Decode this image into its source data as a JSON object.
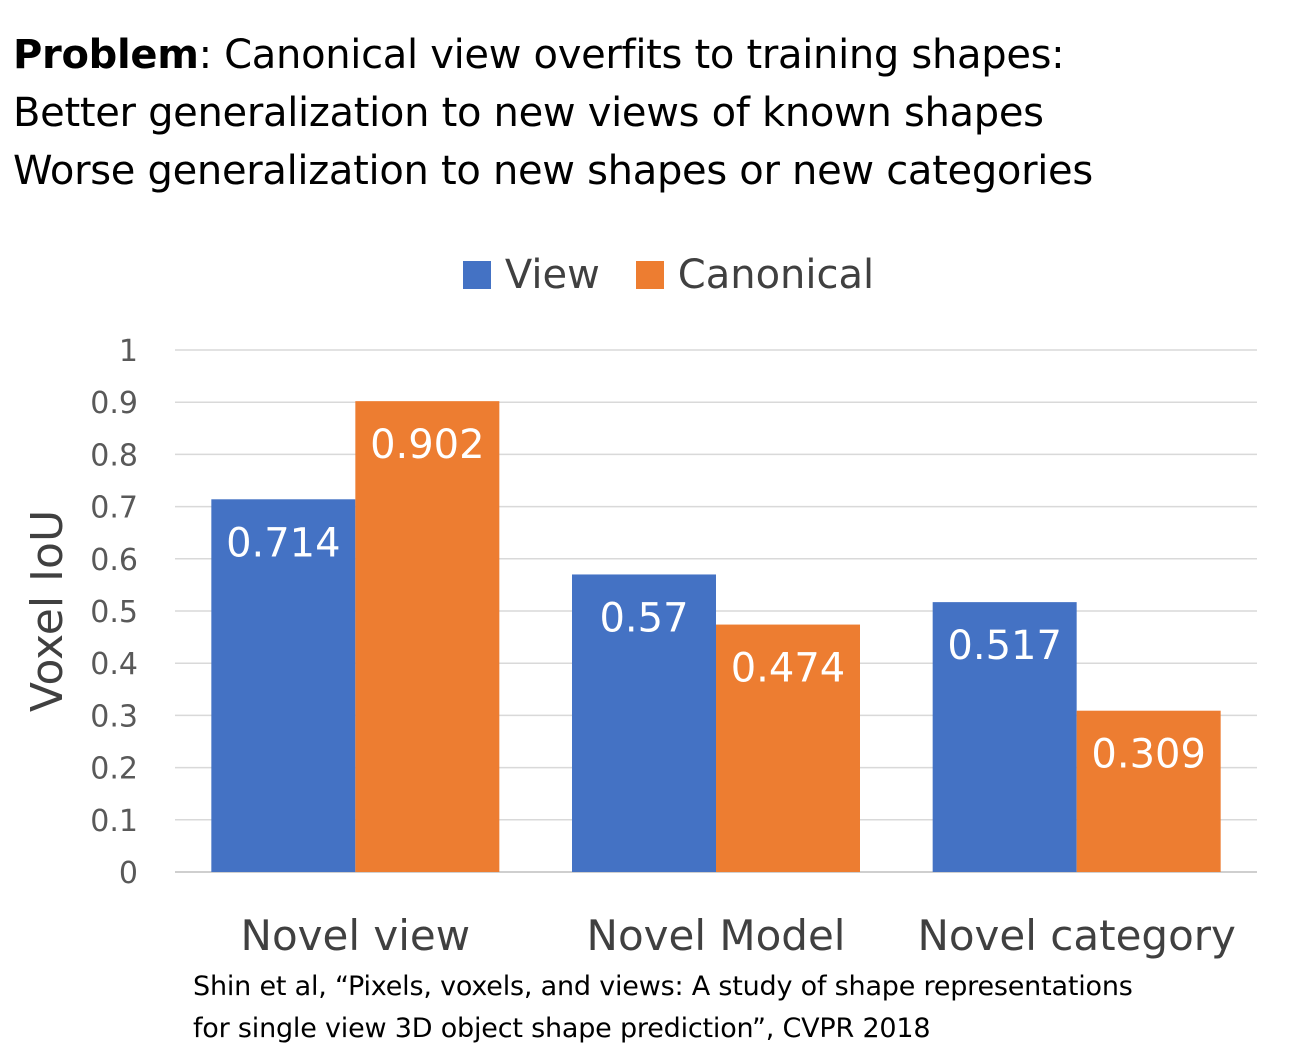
{
  "heading": {
    "bold": "Problem",
    "line1_rest": ": Canonical view overfits to training shapes:",
    "line2": "Better generalization to new views of known shapes",
    "line3": "Worse generalization to new shapes or new categories"
  },
  "citation": {
    "line1": "Shin et al, “Pixels, voxels, and views: A study of shape representations",
    "line2": "for single view 3D object shape prediction”, CVPR 2018"
  },
  "chart_data": {
    "type": "bar",
    "categories": [
      "Novel view",
      "Novel Model",
      "Novel category"
    ],
    "series": [
      {
        "name": "View",
        "values": [
          0.714,
          0.57,
          0.517
        ],
        "labels": [
          "0.714",
          "0.57",
          "0.517"
        ],
        "color": "#4472C4"
      },
      {
        "name": "Canonical",
        "values": [
          0.902,
          0.474,
          0.309
        ],
        "labels": [
          "0.902",
          "0.474",
          "0.309"
        ],
        "color": "#ED7D31"
      }
    ],
    "ylabel": "Voxel IoU",
    "ylim": [
      0,
      1
    ],
    "yticks": [
      "0",
      "0.1",
      "0.2",
      "0.3",
      "0.4",
      "0.5",
      "0.6",
      "0.7",
      "0.8",
      "0.9",
      "1"
    ],
    "grid": true,
    "legend_position": "top"
  }
}
